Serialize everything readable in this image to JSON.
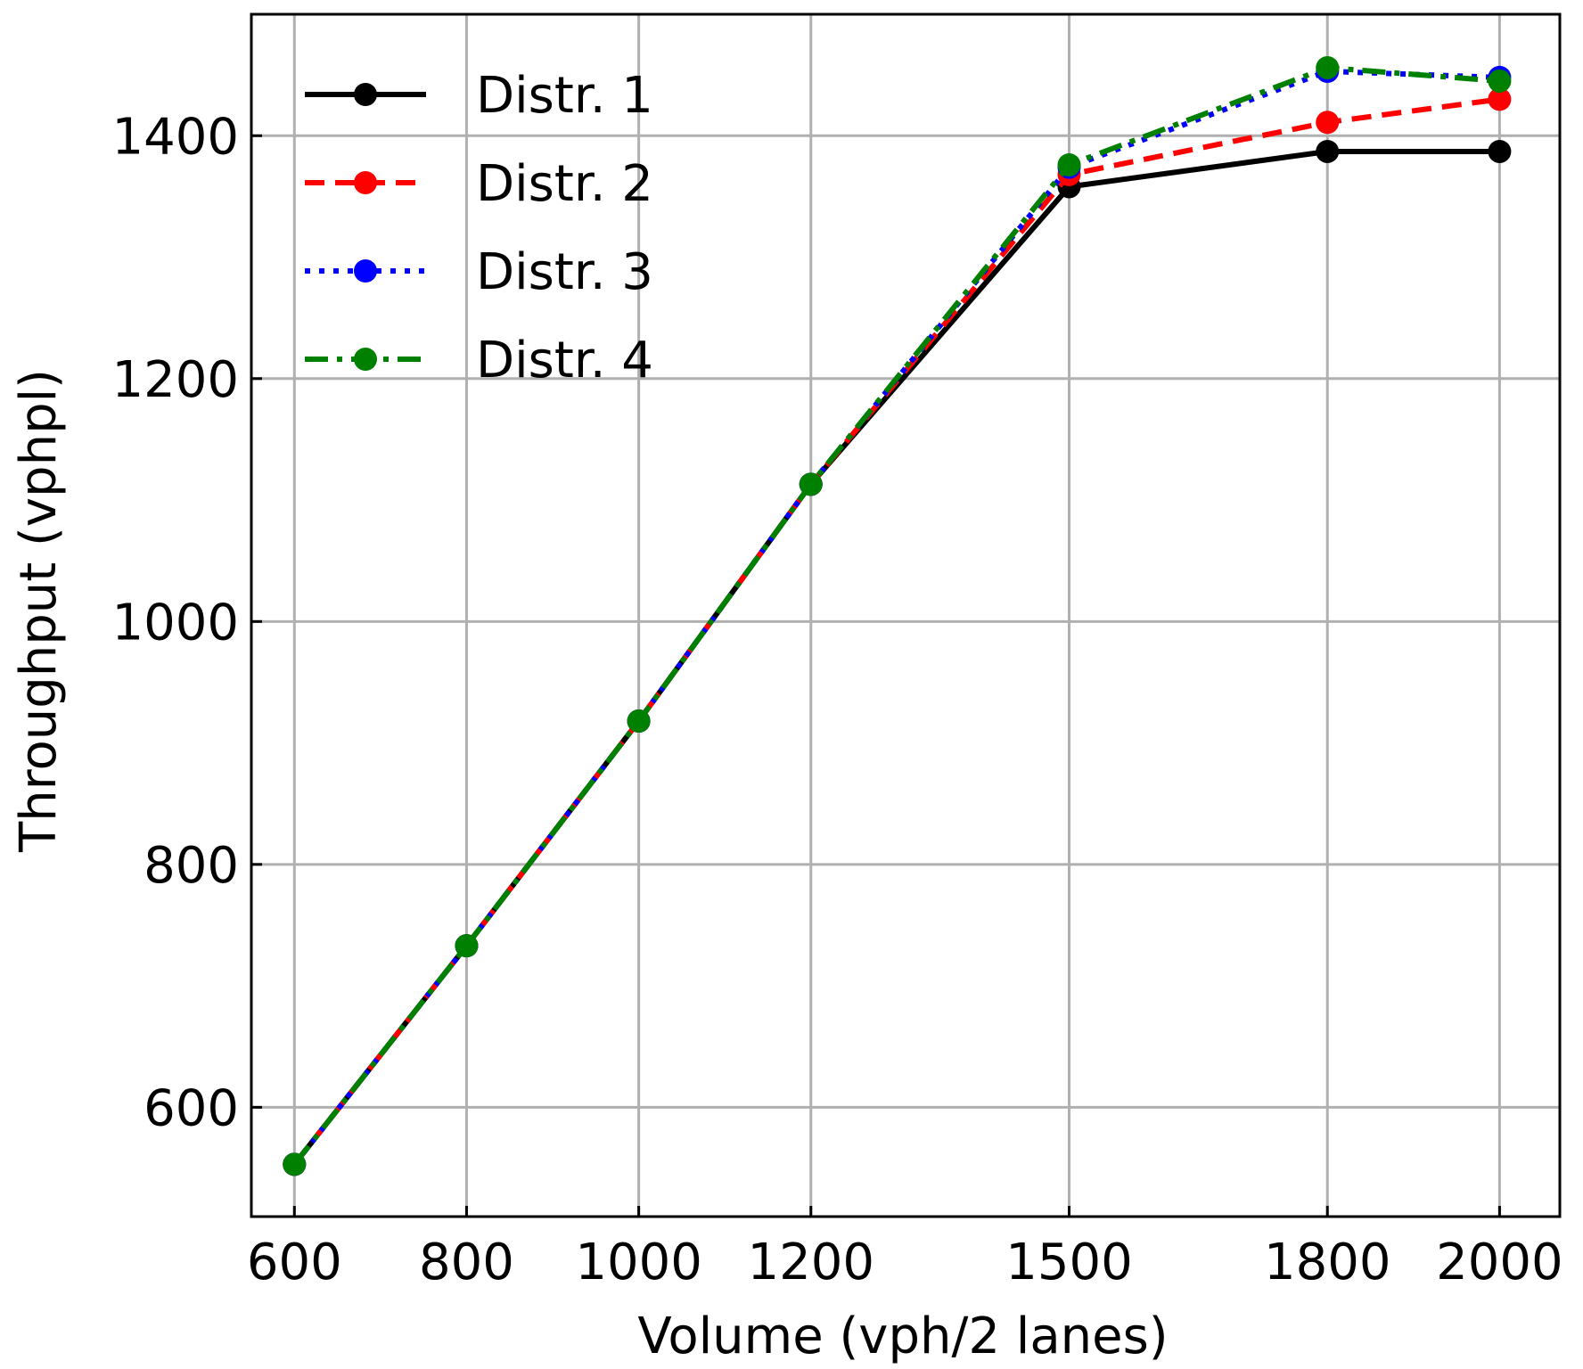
{
  "chart_data": {
    "type": "line",
    "xlabel": "Volume (vph/2 lanes)",
    "ylabel": "Throughput (vphpl)",
    "x": [
      600,
      800,
      1000,
      1200,
      1500,
      1800,
      2000
    ],
    "x_ticks": [
      600,
      800,
      1000,
      1200,
      1500,
      1800,
      2000
    ],
    "y_ticks": [
      600,
      800,
      1000,
      1200,
      1400
    ],
    "xlim": [
      550,
      2070
    ],
    "ylim": [
      510,
      1500
    ],
    "grid": true,
    "legend_position": "top-left",
    "series": [
      {
        "name": "Distr. 1",
        "color": "#000000",
        "style": "solid",
        "values": [
          553,
          733,
          918,
          1113,
          1358,
          1387,
          1387
        ]
      },
      {
        "name": "Distr. 2",
        "color": "#ff0000",
        "style": "dashed",
        "values": [
          553,
          733,
          918,
          1113,
          1368,
          1411,
          1430
        ]
      },
      {
        "name": "Distr. 3",
        "color": "#0000ff",
        "style": "dotted",
        "values": [
          553,
          733,
          918,
          1113,
          1374,
          1453,
          1448
        ]
      },
      {
        "name": "Distr. 4",
        "color": "#008000",
        "style": "dashdot",
        "values": [
          553,
          733,
          918,
          1113,
          1376,
          1456,
          1445
        ]
      }
    ]
  }
}
